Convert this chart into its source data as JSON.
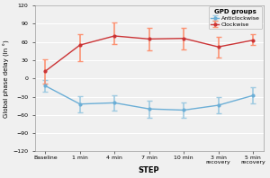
{
  "x_labels": [
    "Baseline",
    "1 min",
    "4 min",
    "7 min",
    "10 min",
    "3 min\nrecovery",
    "5 min\nrecovery"
  ],
  "blue_mean": [
    -12,
    -42,
    -40,
    -50,
    -52,
    -44,
    -28
  ],
  "blue_err_upper": [
    10,
    13,
    13,
    14,
    12,
    13,
    13
  ],
  "blue_err_lower": [
    10,
    13,
    13,
    14,
    12,
    13,
    13
  ],
  "red_mean": [
    12,
    55,
    70,
    65,
    66,
    52,
    63
  ],
  "red_err_upper": [
    20,
    18,
    22,
    18,
    18,
    16,
    10
  ],
  "red_err_lower": [
    20,
    27,
    13,
    18,
    18,
    18,
    8
  ],
  "blue_color": "#6BAED6",
  "red_color": "#CB3335",
  "blue_err_color": "#9ECAE1",
  "red_err_color": "#FC9272",
  "ylabel": "Global phase delay (in °)",
  "xlabel": "STEP",
  "legend_title": "GPD groups",
  "legend_anticlockwise": "Anticlockwise",
  "legend_clockwise": "Clockwise",
  "ylim": [
    -120,
    120
  ],
  "yticks": [
    -120,
    -90,
    -60,
    -30,
    0,
    30,
    60,
    90,
    120
  ],
  "bg_color": "#F0F0F0"
}
